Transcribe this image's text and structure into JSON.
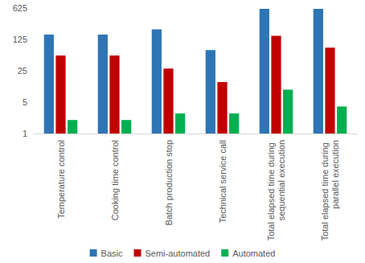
{
  "chart_data": {
    "type": "bar",
    "categories": [
      "Temperature control",
      "Cooking time control",
      "Batch production stop",
      "Technical service call",
      "Total elapsed time during sequential execution",
      "Total elapsed time during parallel execution"
    ],
    "series": [
      {
        "name": "Basic",
        "color": "#2e75b6",
        "values": [
          160,
          160,
          210,
          72,
          600,
          600
        ]
      },
      {
        "name": "Semi-automated",
        "color": "#c00000",
        "values": [
          55,
          55,
          28,
          14,
          150,
          82
        ]
      },
      {
        "name": "Automated",
        "color": "#00b050",
        "values": [
          2,
          2,
          2.8,
          2.8,
          9.5,
          4
        ]
      }
    ],
    "log": "y",
    "ylim": [
      1,
      625
    ],
    "yticks": [
      1,
      5,
      25,
      125,
      625
    ],
    "grid": false,
    "legend": "bottom"
  }
}
